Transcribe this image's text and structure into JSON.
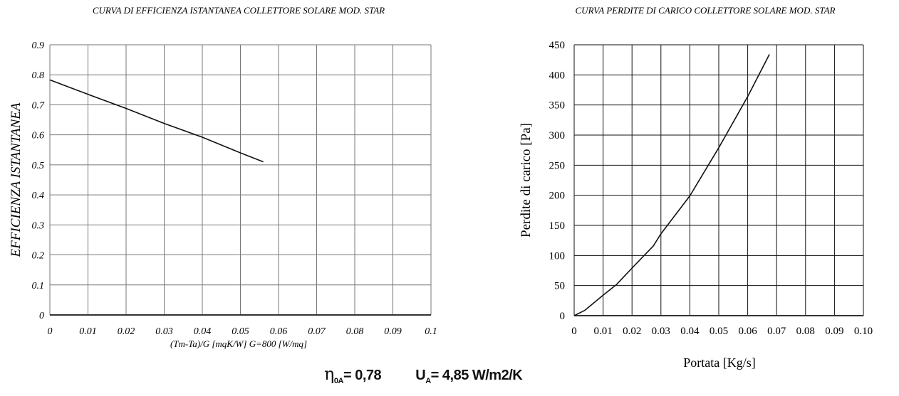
{
  "chart_data": [
    {
      "type": "line",
      "title": "CURVA DI EFFICIENZA ISTANTANEA COLLETTORE SOLARE MOD. STAR",
      "xlabel": "(Tm-Ta)/G [mqK/W]    G=800 [W/mq]",
      "ylabel": "EFFICIENZA ISTANTANEA",
      "xlim": [
        0,
        0.1
      ],
      "ylim": [
        0,
        0.9
      ],
      "xticks": [
        "0",
        "0.01",
        "0.02",
        "0.03",
        "0.04",
        "0.05",
        "0.06",
        "0.07",
        "0.08",
        "0.09",
        "0.1"
      ],
      "yticks": [
        "0",
        "0.1",
        "0.2",
        "0.3",
        "0.4",
        "0.5",
        "0.6",
        "0.7",
        "0.8",
        "0.9"
      ],
      "grid": true,
      "series": [
        {
          "x": [
            0,
            0.01,
            0.02,
            0.03,
            0.04,
            0.05,
            0.056
          ],
          "y": [
            0.783,
            0.735,
            0.688,
            0.638,
            0.592,
            0.54,
            0.51
          ]
        }
      ]
    },
    {
      "type": "line",
      "title": "CURVA PERDITE DI CARICO COLLETTORE SOLARE MOD. STAR",
      "xlabel": "Portata [Kg/s]",
      "ylabel": "Perdite di carico [Pa]",
      "xlim": [
        0,
        0.1
      ],
      "ylim": [
        0,
        450
      ],
      "xticks": [
        "0",
        "0.01",
        "0.02",
        "0.03",
        "0.04",
        "0.05",
        "0.06",
        "0.07",
        "0.08",
        "0.09",
        "0.10"
      ],
      "yticks": [
        "0",
        "50",
        "100",
        "150",
        "200",
        "250",
        "300",
        "350",
        "400",
        "450"
      ],
      "grid": true,
      "series": [
        {
          "x": [
            0,
            0.0036,
            0.01,
            0.0147,
            0.02,
            0.0274,
            0.03,
            0.04,
            0.05,
            0.06,
            0.0675
          ],
          "y": [
            0,
            8.6,
            34,
            52,
            79,
            116,
            136,
            199,
            279,
            364,
            434
          ]
        }
      ]
    }
  ],
  "params": {
    "eta_symbol": "η",
    "eta_sub": "0A",
    "eta_value": "= 0,78",
    "u_symbol": "U",
    "u_sub": "A",
    "u_value": "= 4,85 W/m2/K"
  }
}
